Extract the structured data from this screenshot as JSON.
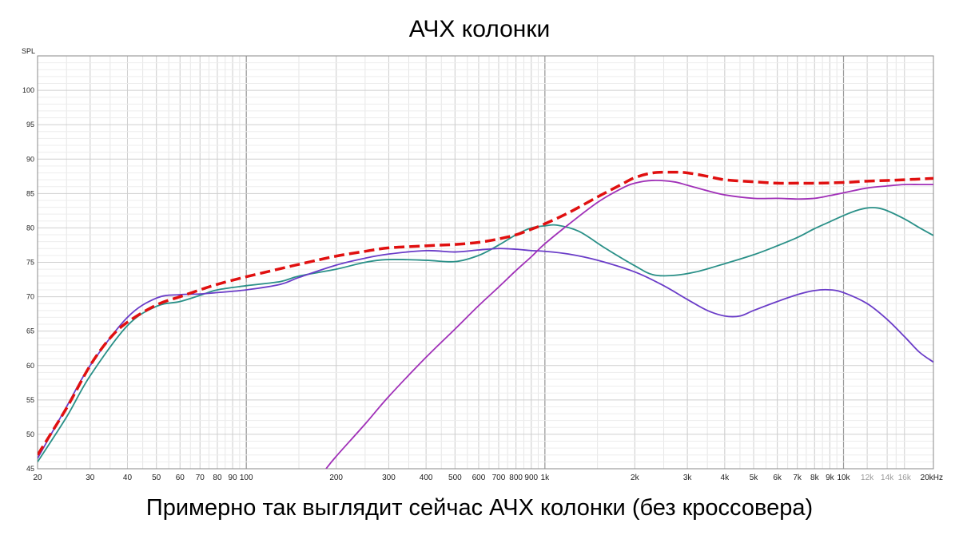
{
  "chart_data": {
    "type": "line",
    "title": "АЧХ колонки",
    "caption": "Примерно так выглядит сейчас АЧХ колонки (без кроссовера)",
    "ylabel": "SPL",
    "xlabel": "",
    "x_scale": "log",
    "xlim": [
      20,
      20000
    ],
    "ylim": [
      45,
      105
    ],
    "y_ticks": [
      45,
      50,
      55,
      60,
      65,
      70,
      75,
      80,
      85,
      90,
      95,
      100
    ],
    "x_ticks": [
      {
        "v": 20,
        "label": "20"
      },
      {
        "v": 30,
        "label": "30"
      },
      {
        "v": 40,
        "label": "40"
      },
      {
        "v": 50,
        "label": "50"
      },
      {
        "v": 60,
        "label": "60"
      },
      {
        "v": 70,
        "label": "70"
      },
      {
        "v": 80,
        "label": "80"
      },
      {
        "v": 90,
        "label": "90"
      },
      {
        "v": 100,
        "label": "100"
      },
      {
        "v": 200,
        "label": "200"
      },
      {
        "v": 300,
        "label": "300"
      },
      {
        "v": 400,
        "label": "400"
      },
      {
        "v": 500,
        "label": "500"
      },
      {
        "v": 600,
        "label": "600"
      },
      {
        "v": 700,
        "label": "700"
      },
      {
        "v": 800,
        "label": "800"
      },
      {
        "v": 900,
        "label": "900"
      },
      {
        "v": 1000,
        "label": "1k"
      },
      {
        "v": 2000,
        "label": "2k"
      },
      {
        "v": 3000,
        "label": "3k"
      },
      {
        "v": 4000,
        "label": "4k"
      },
      {
        "v": 5000,
        "label": "5k"
      },
      {
        "v": 6000,
        "label": "6k"
      },
      {
        "v": 7000,
        "label": "7k"
      },
      {
        "v": 8000,
        "label": "8k"
      },
      {
        "v": 9000,
        "label": "9k"
      },
      {
        "v": 10000,
        "label": "10k"
      },
      {
        "v": 12000,
        "label": "12k",
        "faint": true
      },
      {
        "v": 14000,
        "label": "14k",
        "faint": true
      },
      {
        "v": 16000,
        "label": "16k",
        "faint": true
      },
      {
        "v": 20000,
        "label": "20kHz"
      }
    ],
    "major_lines": [
      100,
      1000,
      10000
    ],
    "grid": true,
    "series": [
      {
        "color": "#2a9088",
        "dashed": false,
        "points": [
          [
            20,
            46.0
          ],
          [
            25,
            52.5
          ],
          [
            30,
            58.5
          ],
          [
            40,
            65.8
          ],
          [
            50,
            68.6
          ],
          [
            60,
            69.3
          ],
          [
            70,
            70.2
          ],
          [
            80,
            71.0
          ],
          [
            100,
            71.6
          ],
          [
            130,
            72.2
          ],
          [
            150,
            73.0
          ],
          [
            200,
            74.0
          ],
          [
            250,
            75.0
          ],
          [
            300,
            75.4
          ],
          [
            400,
            75.3
          ],
          [
            500,
            75.1
          ],
          [
            600,
            76.0
          ],
          [
            700,
            77.5
          ],
          [
            800,
            79.0
          ],
          [
            900,
            80.0
          ],
          [
            1000,
            80.3
          ],
          [
            1100,
            80.4
          ],
          [
            1300,
            79.5
          ],
          [
            1600,
            77.0
          ],
          [
            2000,
            74.5
          ],
          [
            2300,
            73.2
          ],
          [
            2700,
            73.1
          ],
          [
            3200,
            73.6
          ],
          [
            4000,
            74.8
          ],
          [
            5000,
            76.1
          ],
          [
            6000,
            77.4
          ],
          [
            7000,
            78.6
          ],
          [
            8000,
            79.9
          ],
          [
            9000,
            80.9
          ],
          [
            10000,
            81.8
          ],
          [
            11000,
            82.5
          ],
          [
            12000,
            82.9
          ],
          [
            13000,
            82.9
          ],
          [
            14000,
            82.5
          ],
          [
            16000,
            81.3
          ],
          [
            18000,
            80.0
          ],
          [
            20000,
            78.9
          ]
        ]
      },
      {
        "color": "#6a3cc8",
        "dashed": false,
        "points": [
          [
            20,
            46.5
          ],
          [
            25,
            54.0
          ],
          [
            30,
            60.0
          ],
          [
            40,
            67.0
          ],
          [
            50,
            69.8
          ],
          [
            60,
            70.3
          ],
          [
            70,
            70.4
          ],
          [
            80,
            70.6
          ],
          [
            100,
            71.0
          ],
          [
            130,
            71.8
          ],
          [
            150,
            72.8
          ],
          [
            200,
            74.6
          ],
          [
            250,
            75.6
          ],
          [
            300,
            76.2
          ],
          [
            400,
            76.7
          ],
          [
            500,
            76.5
          ],
          [
            600,
            76.8
          ],
          [
            700,
            77.0
          ],
          [
            800,
            76.9
          ],
          [
            900,
            76.7
          ],
          [
            1000,
            76.6
          ],
          [
            1200,
            76.2
          ],
          [
            1500,
            75.3
          ],
          [
            2000,
            73.6
          ],
          [
            2500,
            71.6
          ],
          [
            3000,
            69.6
          ],
          [
            3500,
            68.0
          ],
          [
            4000,
            67.2
          ],
          [
            4500,
            67.2
          ],
          [
            5000,
            68.0
          ],
          [
            6000,
            69.3
          ],
          [
            7000,
            70.3
          ],
          [
            8000,
            70.9
          ],
          [
            9000,
            71.0
          ],
          [
            10000,
            70.6
          ],
          [
            12000,
            69.0
          ],
          [
            14000,
            66.7
          ],
          [
            16000,
            64.2
          ],
          [
            18000,
            61.9
          ],
          [
            20000,
            60.5
          ]
        ]
      },
      {
        "color": "#a030b8",
        "dashed": false,
        "points": [
          [
            185,
            45.0
          ],
          [
            200,
            46.8
          ],
          [
            250,
            51.5
          ],
          [
            300,
            55.5
          ],
          [
            400,
            61.2
          ],
          [
            500,
            65.3
          ],
          [
            600,
            68.7
          ],
          [
            700,
            71.4
          ],
          [
            800,
            73.8
          ],
          [
            900,
            75.8
          ],
          [
            1000,
            77.7
          ],
          [
            1200,
            80.5
          ],
          [
            1500,
            83.7
          ],
          [
            1800,
            85.7
          ],
          [
            2000,
            86.5
          ],
          [
            2300,
            86.9
          ],
          [
            2700,
            86.7
          ],
          [
            3000,
            86.2
          ],
          [
            3500,
            85.4
          ],
          [
            4000,
            84.8
          ],
          [
            5000,
            84.3
          ],
          [
            6000,
            84.3
          ],
          [
            7000,
            84.2
          ],
          [
            8000,
            84.3
          ],
          [
            9000,
            84.7
          ],
          [
            10000,
            85.1
          ],
          [
            12000,
            85.8
          ],
          [
            14000,
            86.1
          ],
          [
            16000,
            86.3
          ],
          [
            18000,
            86.3
          ],
          [
            20000,
            86.3
          ]
        ]
      },
      {
        "color": "#e01010",
        "dashed": true,
        "points": [
          [
            20,
            47.0
          ],
          [
            25,
            53.8
          ],
          [
            30,
            60.0
          ],
          [
            35,
            64.0
          ],
          [
            40,
            66.3
          ],
          [
            50,
            68.8
          ],
          [
            60,
            70.0
          ],
          [
            70,
            71.0
          ],
          [
            80,
            71.8
          ],
          [
            100,
            72.9
          ],
          [
            150,
            74.7
          ],
          [
            200,
            75.9
          ],
          [
            250,
            76.6
          ],
          [
            300,
            77.1
          ],
          [
            400,
            77.4
          ],
          [
            500,
            77.6
          ],
          [
            600,
            77.9
          ],
          [
            700,
            78.4
          ],
          [
            800,
            79.0
          ],
          [
            900,
            79.8
          ],
          [
            1000,
            80.6
          ],
          [
            1200,
            82.2
          ],
          [
            1500,
            84.5
          ],
          [
            1800,
            86.3
          ],
          [
            2000,
            87.3
          ],
          [
            2300,
            88.0
          ],
          [
            2700,
            88.1
          ],
          [
            3000,
            88.0
          ],
          [
            3500,
            87.5
          ],
          [
            4000,
            87.0
          ],
          [
            5000,
            86.7
          ],
          [
            6000,
            86.5
          ],
          [
            7000,
            86.5
          ],
          [
            8000,
            86.5
          ],
          [
            10000,
            86.6
          ],
          [
            12000,
            86.8
          ],
          [
            14000,
            86.9
          ],
          [
            16000,
            87.0
          ],
          [
            18000,
            87.1
          ],
          [
            20000,
            87.2
          ]
        ]
      }
    ]
  }
}
